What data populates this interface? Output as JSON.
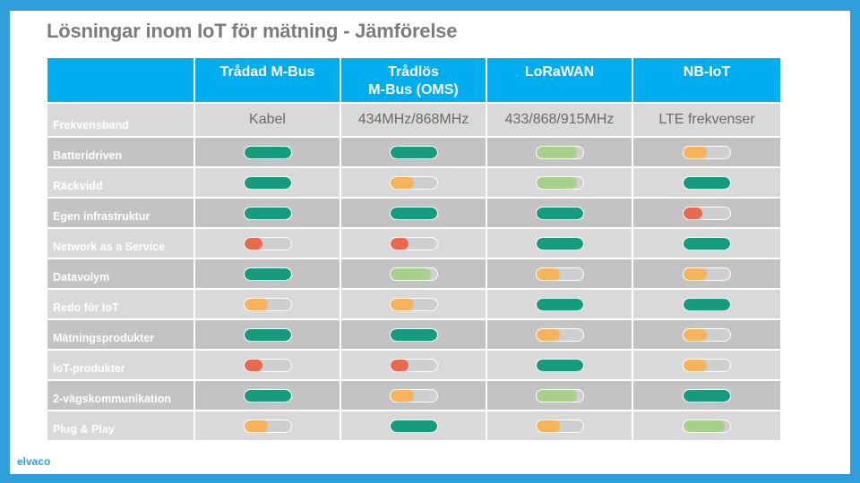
{
  "title": "Lösningar inom IoT för mätning - Jämförelse",
  "logo": "elvaco",
  "columns": [
    "Trådad M-Bus",
    "Trådlös\nM-Bus (OMS)",
    "LoRaWAN",
    "NB-IoT"
  ],
  "colors": {
    "dark_green": "#169b7c",
    "light_green": "#a8d08d",
    "orange": "#f6b35b",
    "red": "#e8694f",
    "header_blue": "#00aeef",
    "frame_blue": "#2f9fdc"
  },
  "level_legend": {
    "full": "dark_green",
    "high": "light_green",
    "medium": "orange",
    "low": "red"
  },
  "freq_row": {
    "label": "Frekvensband",
    "values": [
      "Kabel",
      "434MHz/868MHz",
      "433/868/915MHz",
      "LTE frekvenser"
    ]
  },
  "rows": [
    {
      "label": "Batteridriven",
      "levels": [
        "full",
        "full",
        "high",
        "medium"
      ]
    },
    {
      "label": "Räckvidd",
      "levels": [
        "full",
        "medium",
        "high",
        "full"
      ]
    },
    {
      "label": "Egen infrastruktur",
      "levels": [
        "full",
        "full",
        "full",
        "low"
      ]
    },
    {
      "label": "Network as a Service",
      "levels": [
        "low",
        "low",
        "full",
        "full"
      ]
    },
    {
      "label": "Datavolym",
      "levels": [
        "full",
        "high",
        "medium",
        "medium"
      ]
    },
    {
      "label": "Redo för IoT",
      "levels": [
        "medium",
        "medium",
        "full",
        "full"
      ]
    },
    {
      "label": "Mätningsprodukter",
      "levels": [
        "full",
        "full",
        "medium",
        "medium"
      ]
    },
    {
      "label": "IoT-produkter",
      "levels": [
        "low",
        "low",
        "full",
        "medium"
      ]
    },
    {
      "label": "2-vägskommunikation",
      "levels": [
        "full",
        "medium",
        "high",
        "full"
      ]
    },
    {
      "label": "Plug & Play",
      "levels": [
        "medium",
        "full",
        "medium",
        "high"
      ]
    }
  ],
  "level_fraction": {
    "full": 1.0,
    "high": 0.88,
    "medium": 0.5,
    "low": 0.4
  }
}
